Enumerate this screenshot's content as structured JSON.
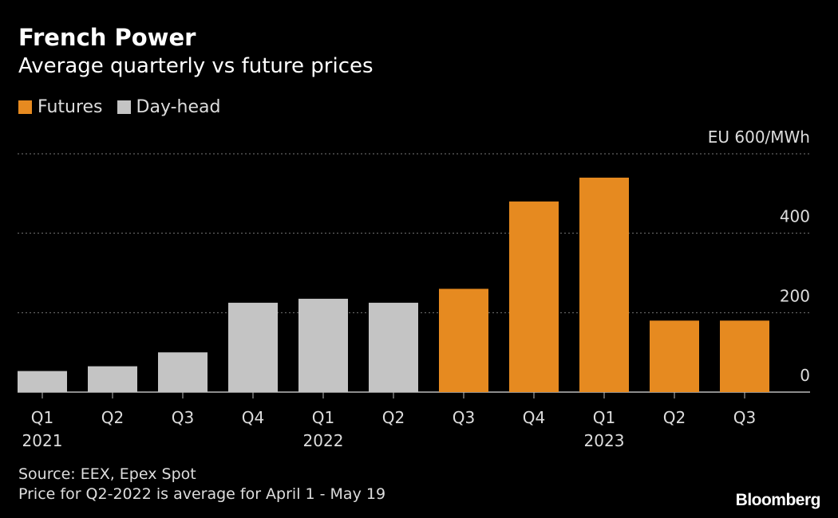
{
  "header": {
    "title": "French Power",
    "subtitle": "Average quarterly vs future prices"
  },
  "legend": {
    "items": [
      {
        "label": "Futures",
        "color": "#E68A20"
      },
      {
        "label": "Day-head",
        "color": "#C4C4C4"
      }
    ]
  },
  "footer": {
    "source": "Source: EEX, Epex Spot",
    "note": "Price for Q2-2022 is average for April 1 - May 19"
  },
  "brand": "Bloomberg",
  "chart_data": {
    "type": "bar",
    "categories": [
      "Q1",
      "Q2",
      "Q3",
      "Q4",
      "Q1",
      "Q2",
      "Q3",
      "Q4",
      "Q1",
      "Q2",
      "Q3"
    ],
    "years": [
      {
        "label": "2021",
        "index": 0
      },
      {
        "label": "2022",
        "index": 4
      },
      {
        "label": "2023",
        "index": 8
      }
    ],
    "series": [
      {
        "name": "Day-head",
        "color": "#C4C4C4",
        "values": [
          53,
          65,
          100,
          225,
          235,
          225,
          null,
          null,
          null,
          null,
          null
        ]
      },
      {
        "name": "Futures",
        "color": "#E68A20",
        "values": [
          null,
          null,
          null,
          null,
          null,
          null,
          260,
          480,
          540,
          180,
          180
        ]
      }
    ],
    "ylabel": "EU",
    "yunit": "/MWh",
    "ylim": [
      0,
      600
    ],
    "yticks": [
      0,
      200,
      400,
      600
    ],
    "grid": true
  }
}
